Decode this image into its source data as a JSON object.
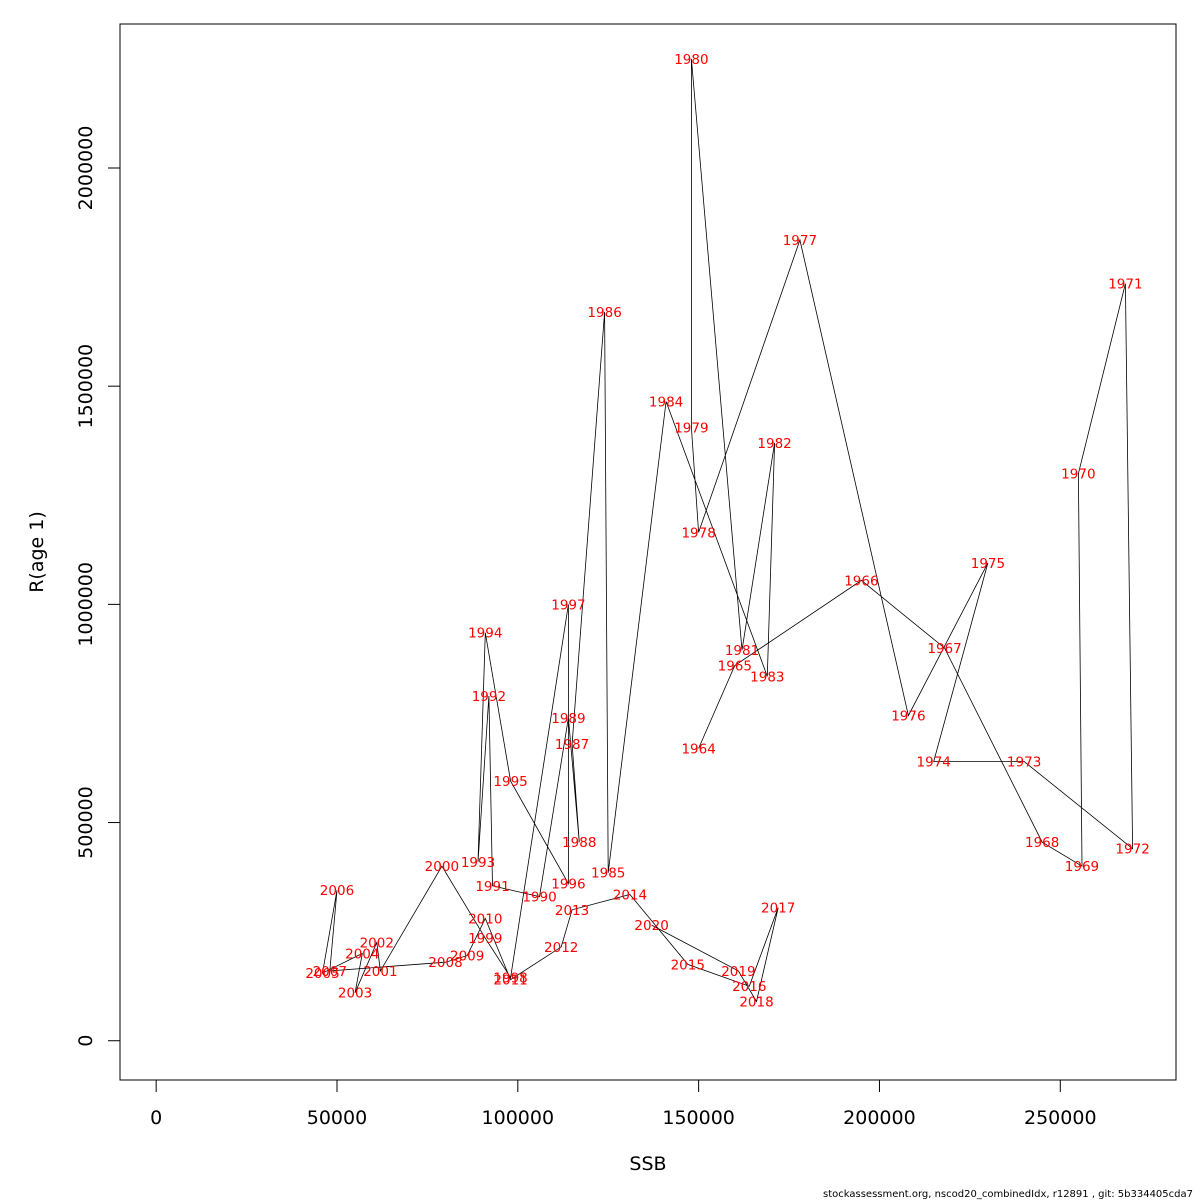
{
  "chart_data": {
    "type": "line",
    "xlabel": "SSB",
    "ylabel": "R(age 1)",
    "xlim": [
      -10000,
      282000
    ],
    "ylim": [
      -90000,
      2330000
    ],
    "x_ticks": [
      0,
      50000,
      100000,
      150000,
      200000,
      250000
    ],
    "x_tick_labels": [
      "0",
      "50000",
      "100000",
      "150000",
      "200000",
      "250000"
    ],
    "y_ticks": [
      0,
      500000,
      1000000,
      1500000,
      2000000
    ],
    "y_tick_labels": [
      "0",
      "500000",
      "1000000",
      "1500000",
      "2000000"
    ],
    "grid": false,
    "line_color": "#000000",
    "label_color": "#ff0000",
    "points": [
      {
        "year": "1964",
        "x": 150000,
        "y": 670000
      },
      {
        "year": "1965",
        "x": 160000,
        "y": 860000
      },
      {
        "year": "1966",
        "x": 195000,
        "y": 1055000
      },
      {
        "year": "1967",
        "x": 218000,
        "y": 900000
      },
      {
        "year": "1968",
        "x": 245000,
        "y": 455000
      },
      {
        "year": "1969",
        "x": 256000,
        "y": 400000
      },
      {
        "year": "1970",
        "x": 255000,
        "y": 1300000
      },
      {
        "year": "1971",
        "x": 268000,
        "y": 1735000
      },
      {
        "year": "1972",
        "x": 270000,
        "y": 440000
      },
      {
        "year": "1973",
        "x": 240000,
        "y": 640000
      },
      {
        "year": "1974",
        "x": 215000,
        "y": 640000
      },
      {
        "year": "1975",
        "x": 230000,
        "y": 1095000
      },
      {
        "year": "1976",
        "x": 208000,
        "y": 745000
      },
      {
        "year": "1977",
        "x": 178000,
        "y": 1835000
      },
      {
        "year": "1978",
        "x": 150000,
        "y": 1165000
      },
      {
        "year": "1979",
        "x": 148000,
        "y": 1405000
      },
      {
        "year": "1980",
        "x": 148000,
        "y": 2250000
      },
      {
        "year": "1981",
        "x": 162000,
        "y": 895000
      },
      {
        "year": "1982",
        "x": 171000,
        "y": 1370000
      },
      {
        "year": "1983",
        "x": 169000,
        "y": 835000
      },
      {
        "year": "1984",
        "x": 141000,
        "y": 1465000
      },
      {
        "year": "1985",
        "x": 125000,
        "y": 385000
      },
      {
        "year": "1986",
        "x": 124000,
        "y": 1670000
      },
      {
        "year": "1987",
        "x": 115000,
        "y": 680000
      },
      {
        "year": "1988",
        "x": 117000,
        "y": 455000
      },
      {
        "year": "1989",
        "x": 114000,
        "y": 740000
      },
      {
        "year": "1990",
        "x": 106000,
        "y": 330000
      },
      {
        "year": "1991",
        "x": 93000,
        "y": 355000
      },
      {
        "year": "1992",
        "x": 92000,
        "y": 790000
      },
      {
        "year": "1993",
        "x": 89000,
        "y": 410000
      },
      {
        "year": "1994",
        "x": 91000,
        "y": 935000
      },
      {
        "year": "1995",
        "x": 98000,
        "y": 595000
      },
      {
        "year": "1996",
        "x": 114000,
        "y": 360000
      },
      {
        "year": "1997",
        "x": 114000,
        "y": 1000000
      },
      {
        "year": "1998",
        "x": 98000,
        "y": 145000
      },
      {
        "year": "1999",
        "x": 91000,
        "y": 235000
      },
      {
        "year": "2000",
        "x": 79000,
        "y": 400000
      },
      {
        "year": "2001",
        "x": 62000,
        "y": 160000
      },
      {
        "year": "2002",
        "x": 61000,
        "y": 225000
      },
      {
        "year": "2003",
        "x": 55000,
        "y": 110000
      },
      {
        "year": "2004",
        "x": 57000,
        "y": 200000
      },
      {
        "year": "2005",
        "x": 46000,
        "y": 155000
      },
      {
        "year": "2006",
        "x": 50000,
        "y": 345000
      },
      {
        "year": "2007",
        "x": 48000,
        "y": 160000
      },
      {
        "year": "2008",
        "x": 80000,
        "y": 180000
      },
      {
        "year": "2009",
        "x": 86000,
        "y": 195000
      },
      {
        "year": "2010",
        "x": 91000,
        "y": 280000
      },
      {
        "year": "2011",
        "x": 98000,
        "y": 140000
      },
      {
        "year": "2012",
        "x": 112000,
        "y": 215000
      },
      {
        "year": "2013",
        "x": 115000,
        "y": 300000
      },
      {
        "year": "2014",
        "x": 131000,
        "y": 335000
      },
      {
        "year": "2015",
        "x": 147000,
        "y": 175000
      },
      {
        "year": "2016",
        "x": 164000,
        "y": 125000
      },
      {
        "year": "2017",
        "x": 172000,
        "y": 305000
      },
      {
        "year": "2018",
        "x": 166000,
        "y": 90000
      },
      {
        "year": "2019",
        "x": 161000,
        "y": 160000
      },
      {
        "year": "2020",
        "x": 137000,
        "y": 265000
      }
    ]
  },
  "footer": "stockassessment.org, nscod20_combinedIdx, r12891 , git: 5b334405cda7"
}
